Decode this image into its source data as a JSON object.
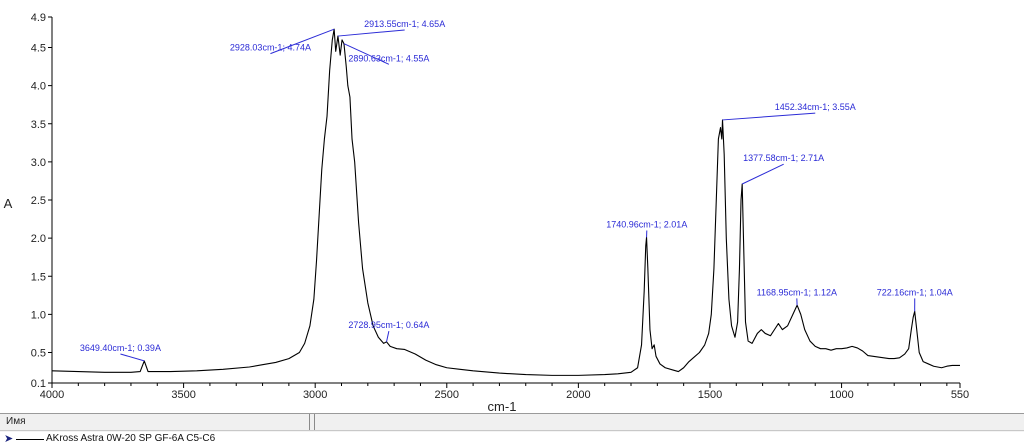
{
  "chart_data": {
    "type": "line",
    "xlabel": "cm-1",
    "ylabel": "A",
    "xlim": [
      4000,
      550
    ],
    "ylim": [
      0.1,
      4.9
    ],
    "x_ticks": [
      4000,
      3500,
      3000,
      2500,
      2000,
      1500,
      1000,
      550
    ],
    "y_ticks": [
      0.1,
      0.5,
      1.0,
      1.5,
      2.0,
      2.5,
      3.0,
      3.5,
      4.0,
      4.5,
      4.9
    ],
    "y_tick_labels": [
      "0.1",
      "0.5",
      "1.0",
      "1.5",
      "2.0",
      "2.5",
      "3.0",
      "3.5",
      "4.0",
      "4.5",
      "4.9"
    ],
    "series": [
      {
        "name": "AKross Astra 0W-20 SP GF-6A C5-C6",
        "color": "#000000",
        "points": [
          [
            4000,
            0.26
          ],
          [
            3900,
            0.25
          ],
          [
            3800,
            0.24
          ],
          [
            3700,
            0.24
          ],
          [
            3665,
            0.25
          ],
          [
            3649.4,
            0.39
          ],
          [
            3635,
            0.25
          ],
          [
            3550,
            0.25
          ],
          [
            3450,
            0.26
          ],
          [
            3350,
            0.28
          ],
          [
            3250,
            0.31
          ],
          [
            3200,
            0.34
          ],
          [
            3150,
            0.37
          ],
          [
            3100,
            0.42
          ],
          [
            3060,
            0.5
          ],
          [
            3040,
            0.62
          ],
          [
            3020,
            0.85
          ],
          [
            3005,
            1.2
          ],
          [
            2995,
            1.7
          ],
          [
            2985,
            2.3
          ],
          [
            2975,
            2.9
          ],
          [
            2965,
            3.3
          ],
          [
            2955,
            3.6
          ],
          [
            2945,
            4.2
          ],
          [
            2935,
            4.6
          ],
          [
            2928.03,
            4.74
          ],
          [
            2922,
            4.45
          ],
          [
            2913.55,
            4.65
          ],
          [
            2905,
            4.4
          ],
          [
            2898,
            4.6
          ],
          [
            2890.63,
            4.55
          ],
          [
            2882,
            4.25
          ],
          [
            2876,
            4.0
          ],
          [
            2868,
            3.85
          ],
          [
            2860,
            3.3
          ],
          [
            2850,
            3.0
          ],
          [
            2835,
            2.2
          ],
          [
            2820,
            1.6
          ],
          [
            2800,
            1.15
          ],
          [
            2780,
            0.85
          ],
          [
            2760,
            0.7
          ],
          [
            2740,
            0.62
          ],
          [
            2728.95,
            0.64
          ],
          [
            2715,
            0.58
          ],
          [
            2690,
            0.55
          ],
          [
            2660,
            0.54
          ],
          [
            2620,
            0.48
          ],
          [
            2580,
            0.4
          ],
          [
            2540,
            0.34
          ],
          [
            2500,
            0.3
          ],
          [
            2450,
            0.28
          ],
          [
            2400,
            0.26
          ],
          [
            2300,
            0.23
          ],
          [
            2200,
            0.21
          ],
          [
            2100,
            0.2
          ],
          [
            2000,
            0.2
          ],
          [
            1900,
            0.21
          ],
          [
            1850,
            0.22
          ],
          [
            1800,
            0.24
          ],
          [
            1775,
            0.3
          ],
          [
            1760,
            0.6
          ],
          [
            1750,
            1.3
          ],
          [
            1744,
            1.9
          ],
          [
            1740.96,
            2.01
          ],
          [
            1736,
            1.6
          ],
          [
            1728,
            0.8
          ],
          [
            1720,
            0.55
          ],
          [
            1712,
            0.6
          ],
          [
            1705,
            0.45
          ],
          [
            1690,
            0.35
          ],
          [
            1670,
            0.3
          ],
          [
            1640,
            0.27
          ],
          [
            1620,
            0.25
          ],
          [
            1600,
            0.3
          ],
          [
            1580,
            0.38
          ],
          [
            1560,
            0.44
          ],
          [
            1540,
            0.5
          ],
          [
            1520,
            0.6
          ],
          [
            1505,
            0.75
          ],
          [
            1495,
            1.0
          ],
          [
            1485,
            1.6
          ],
          [
            1475,
            2.6
          ],
          [
            1468,
            3.3
          ],
          [
            1460,
            3.45
          ],
          [
            1455,
            3.3
          ],
          [
            1452.34,
            3.55
          ],
          [
            1446,
            3.1
          ],
          [
            1438,
            2.0
          ],
          [
            1428,
            1.2
          ],
          [
            1418,
            0.85
          ],
          [
            1405,
            0.7
          ],
          [
            1395,
            0.9
          ],
          [
            1388,
            1.6
          ],
          [
            1382,
            2.5
          ],
          [
            1377.58,
            2.71
          ],
          [
            1372,
            1.9
          ],
          [
            1365,
            0.9
          ],
          [
            1355,
            0.65
          ],
          [
            1340,
            0.62
          ],
          [
            1320,
            0.75
          ],
          [
            1305,
            0.8
          ],
          [
            1290,
            0.75
          ],
          [
            1270,
            0.72
          ],
          [
            1255,
            0.8
          ],
          [
            1240,
            0.88
          ],
          [
            1225,
            0.8
          ],
          [
            1205,
            0.85
          ],
          [
            1185,
            1.0
          ],
          [
            1168.95,
            1.12
          ],
          [
            1155,
            1.0
          ],
          [
            1140,
            0.8
          ],
          [
            1120,
            0.65
          ],
          [
            1100,
            0.58
          ],
          [
            1080,
            0.55
          ],
          [
            1060,
            0.55
          ],
          [
            1040,
            0.53
          ],
          [
            1020,
            0.55
          ],
          [
            1000,
            0.55
          ],
          [
            980,
            0.56
          ],
          [
            960,
            0.58
          ],
          [
            940,
            0.56
          ],
          [
            920,
            0.52
          ],
          [
            900,
            0.46
          ],
          [
            880,
            0.45
          ],
          [
            860,
            0.44
          ],
          [
            840,
            0.43
          ],
          [
            820,
            0.42
          ],
          [
            800,
            0.42
          ],
          [
            780,
            0.43
          ],
          [
            760,
            0.48
          ],
          [
            745,
            0.55
          ],
          [
            735,
            0.8
          ],
          [
            728,
            0.96
          ],
          [
            722.16,
            1.04
          ],
          [
            716,
            0.85
          ],
          [
            705,
            0.5
          ],
          [
            690,
            0.38
          ],
          [
            670,
            0.35
          ],
          [
            650,
            0.32
          ],
          [
            620,
            0.3
          ],
          [
            600,
            0.32
          ],
          [
            580,
            0.33
          ],
          [
            560,
            0.33
          ],
          [
            550,
            0.33
          ]
        ]
      }
    ],
    "annotations": [
      {
        "label": "3649.40cm-1; 0.39A",
        "x": 3649.4,
        "y": 0.39,
        "tx": 3740,
        "ty": 0.48
      },
      {
        "label": "2928.03cm-1; 4.74A",
        "x": 2928.03,
        "y": 4.74,
        "tx": 3170,
        "ty": 4.42
      },
      {
        "label": "2913.55cm-1; 4.65A",
        "x": 2913.55,
        "y": 4.65,
        "tx": 2660,
        "ty": 4.73
      },
      {
        "label": "2890.63cm-1; 4.55A",
        "x": 2890.63,
        "y": 4.55,
        "tx": 2720,
        "ty": 4.28
      },
      {
        "label": "2728.95cm-1; 0.64A",
        "x": 2728.95,
        "y": 0.64,
        "tx": 2720,
        "ty": 0.78
      },
      {
        "label": "1740.96cm-1; 2.01A",
        "x": 1740.96,
        "y": 2.01,
        "tx": 1740,
        "ty": 2.1
      },
      {
        "label": "1452.34cm-1; 3.55A",
        "x": 1452.34,
        "y": 3.55,
        "tx": 1100,
        "ty": 3.64
      },
      {
        "label": "1377.58cm-1; 2.71A",
        "x": 1377.58,
        "y": 2.71,
        "tx": 1220,
        "ty": 2.97
      },
      {
        "label": "1168.95cm-1; 1.12A",
        "x": 1168.95,
        "y": 1.12,
        "tx": 1170,
        "ty": 1.21
      },
      {
        "label": "722.16cm-1; 1.04A",
        "x": 722.16,
        "y": 1.04,
        "tx": 722,
        "ty": 1.21
      }
    ]
  },
  "legend_panel": {
    "column_header": "Имя",
    "series_name": "AKross Astra 0W-20 SP GF-6A C5-C6",
    "series_color": "#000000"
  }
}
